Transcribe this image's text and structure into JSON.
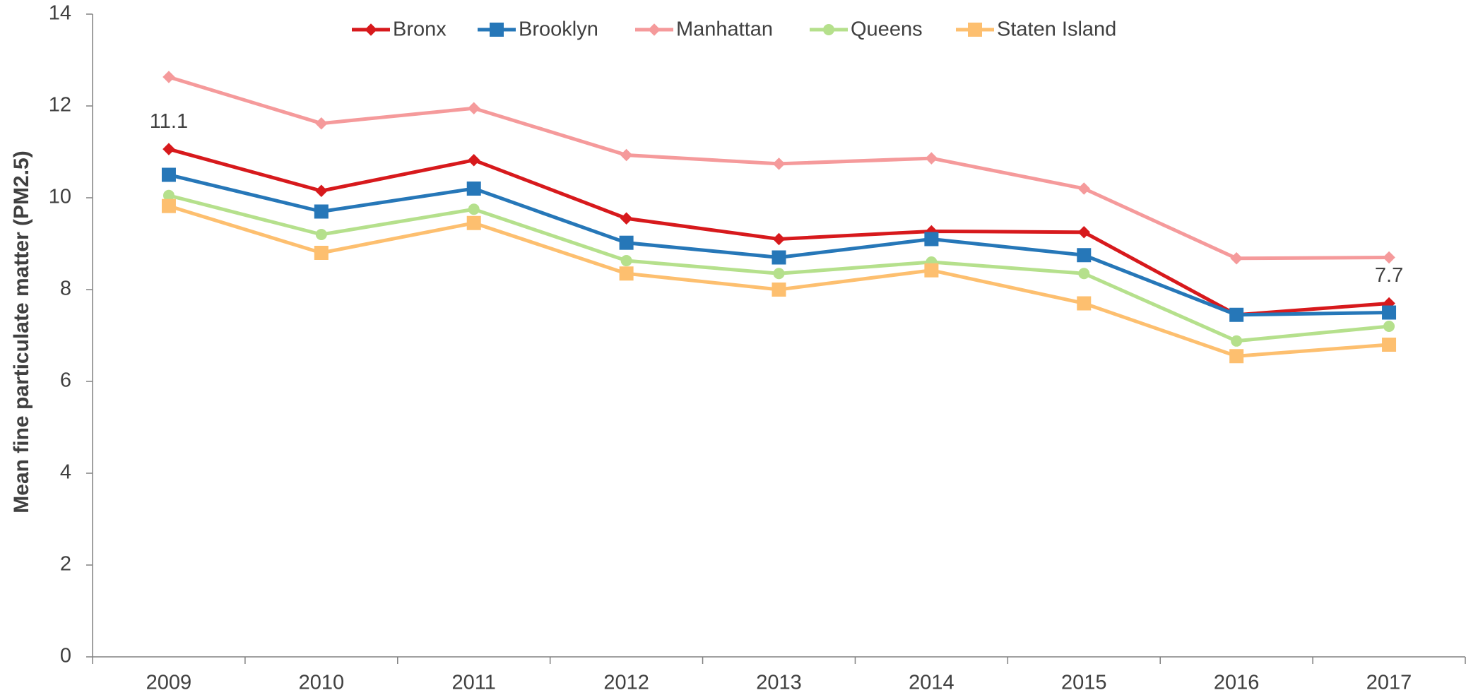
{
  "chart_data": {
    "type": "line",
    "y_label": "Mean fine particulate matter (PM2.5)",
    "categories": [
      "2009",
      "2010",
      "2011",
      "2012",
      "2013",
      "2014",
      "2015",
      "2016",
      "2017"
    ],
    "ylim": [
      0,
      14
    ],
    "yticks": [
      0,
      2,
      4,
      6,
      8,
      10,
      12,
      14
    ],
    "grid": false,
    "legend": "top",
    "series": [
      {
        "name": "Bronx",
        "color": "#d7191c",
        "marker": "diamond",
        "values": [
          11.06,
          10.15,
          10.82,
          9.55,
          9.1,
          9.27,
          9.25,
          7.45,
          7.7
        ],
        "value_labels": [
          "11.1",
          null,
          null,
          null,
          null,
          null,
          null,
          null,
          "7.7"
        ]
      },
      {
        "name": "Brooklyn",
        "color": "#2677b8",
        "marker": "square",
        "values": [
          10.5,
          9.7,
          10.2,
          9.02,
          8.7,
          9.1,
          8.75,
          7.45,
          7.5
        ]
      },
      {
        "name": "Manhattan",
        "color": "#f59a9b",
        "marker": "diamond",
        "values": [
          12.63,
          11.62,
          11.95,
          10.93,
          10.74,
          10.86,
          10.2,
          8.68,
          8.7
        ]
      },
      {
        "name": "Queens",
        "color": "#b5e08c",
        "marker": "circle",
        "values": [
          10.05,
          9.2,
          9.75,
          8.63,
          8.35,
          8.6,
          8.35,
          6.88,
          7.2
        ]
      },
      {
        "name": "Staten Island",
        "color": "#fdbf6f",
        "marker": "square",
        "values": [
          9.82,
          8.8,
          9.45,
          8.35,
          8.0,
          8.42,
          7.7,
          6.55,
          6.8
        ]
      }
    ]
  }
}
